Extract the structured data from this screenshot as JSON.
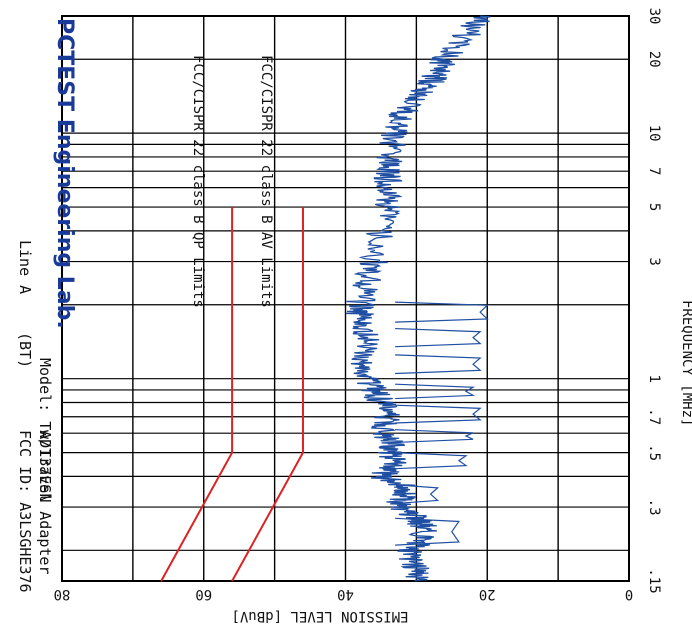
{
  "chart_data": {
    "type": "line",
    "orientation": "rotated-90-clockwise",
    "brand": "PCTEST Engineering Lab.",
    "header": {
      "fcc_id": "FCC ID: A3LSGHE376",
      "bt": "(BT)",
      "line": "Line A",
      "adapter": "w/Travel Adapter",
      "model": "Model: TAD137ESN"
    },
    "xlabel": "FREQUENCY [MHz]",
    "ylabel": "EMISSION LEVEL [dBuV]",
    "x_scale": "log",
    "xlim": [
      0.15,
      30
    ],
    "ylim": [
      0,
      80
    ],
    "x_ticks": [
      0.15,
      0.3,
      0.5,
      0.7,
      1,
      3,
      5,
      7,
      10,
      20,
      30
    ],
    "x_tick_labels": [
      ".15",
      ".3",
      ".5",
      ".7",
      "1",
      "3",
      "5",
      "7",
      "10",
      "20",
      "30"
    ],
    "y_ticks": [
      0,
      20,
      40,
      60,
      80
    ],
    "y_tick_labels": [
      "0",
      "20",
      "40",
      "60",
      "80"
    ],
    "grid": true,
    "series": [
      {
        "name": "FCC/CISPR 22 class B QP Limits",
        "color": "#dd2222",
        "x": [
          0.15,
          0.5,
          5
        ],
        "y": [
          66,
          56,
          56
        ]
      },
      {
        "name": "FCC/CISPR 22 class B AV Limits",
        "color": "#dd2222",
        "x": [
          0.15,
          0.5,
          5
        ],
        "y": [
          56,
          46,
          46
        ]
      },
      {
        "name": "emission",
        "color": "#1f4fa3",
        "x": [
          0.15,
          0.17,
          0.2,
          0.22,
          0.25,
          0.27,
          0.3,
          0.33,
          0.36,
          0.4,
          0.45,
          0.5,
          0.55,
          0.6,
          0.7,
          0.8,
          0.9,
          1,
          1.2,
          1.5,
          1.8,
          2,
          2.5,
          3,
          4,
          5,
          6,
          7,
          8,
          10,
          12,
          14,
          16,
          18,
          20,
          25,
          30
        ],
        "y": [
          30,
          30,
          31,
          29,
          29,
          30,
          33,
          32,
          31,
          35,
          33,
          34,
          33,
          35,
          34,
          35,
          36,
          37,
          38,
          37,
          38,
          38,
          37,
          36,
          35,
          34,
          34,
          34,
          34,
          33,
          32,
          30,
          28,
          27,
          26,
          23,
          21
        ]
      }
    ],
    "av_gaps": [
      {
        "x1": 0.21,
        "x2": 0.27,
        "y": 24
      },
      {
        "x1": 0.31,
        "x2": 0.37,
        "y": 27
      },
      {
        "x1": 0.43,
        "x2": 0.5,
        "y": 23
      },
      {
        "x1": 0.55,
        "x2": 0.62,
        "y": 22
      },
      {
        "x1": 0.66,
        "x2": 0.78,
        "y": 21
      },
      {
        "x1": 0.83,
        "x2": 0.95,
        "y": 22
      },
      {
        "x1": 1.05,
        "x2": 1.25,
        "y": 21
      },
      {
        "x1": 1.35,
        "x2": 1.6,
        "y": 21
      },
      {
        "x1": 1.7,
        "x2": 2.05,
        "y": 20
      }
    ]
  }
}
